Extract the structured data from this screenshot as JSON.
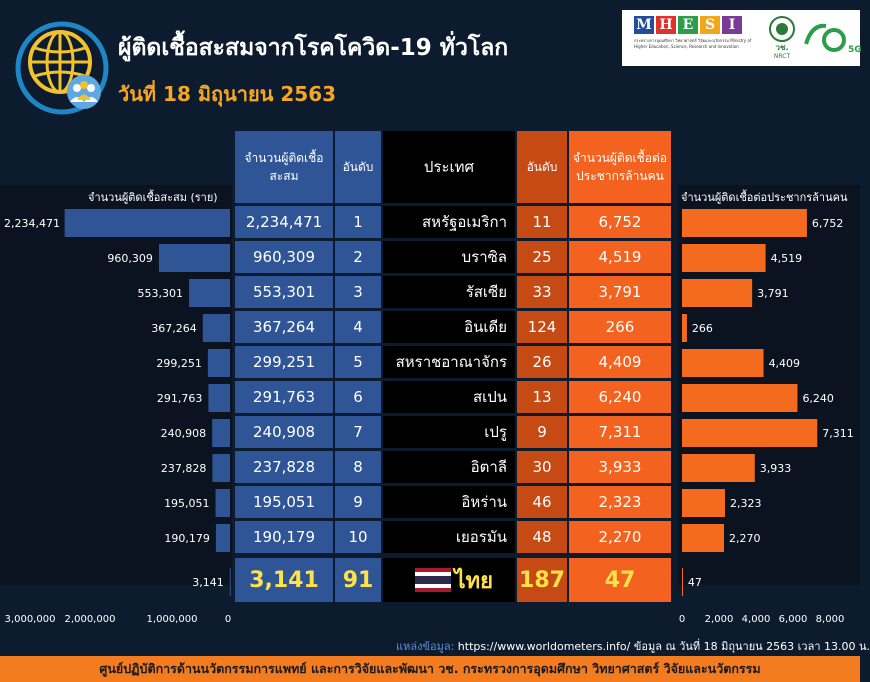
{
  "header": {
    "title": "ผู้ติดเชื้อสะสมจากโรคโควิด-19 ทั่วโลก",
    "date": "วันที่ 18 มิถุนายน 2563"
  },
  "logos": {
    "mhesi_letters": [
      "M",
      "H",
      "E",
      "S",
      "I"
    ],
    "mhesi_colors": [
      "#1f4e9c",
      "#e0312b",
      "#2b9e4a",
      "#f2a71b",
      "#7a3b97"
    ],
    "ministry_text": "กระทรวงการอุดมศึกษา วิทยาศาสตร์ วิจัยและนวัตกรรม Ministry of Higher Education, Science, Research and Innovation",
    "nrct_text": "วช. NRCT",
    "logo70_text": "70",
    "logo70_sub": "5G"
  },
  "table": {
    "headers": {
      "cases": "จำนวนผู้ติดเชื้อสะสม",
      "rank_cases": "อันดับ",
      "country": "ประเทศ",
      "rank_per_million": "อันดับ",
      "per_million": "จำนวนผู้ติดเชื้อต่อประชากรล้านคน"
    },
    "rows": [
      {
        "cases": "2,234,471",
        "rank": "1",
        "country": "สหรัฐอเมริกา",
        "rank_pm": "11",
        "per_million": "6,752"
      },
      {
        "cases": "960,309",
        "rank": "2",
        "country": "บราซิล",
        "rank_pm": "25",
        "per_million": "4,519"
      },
      {
        "cases": "553,301",
        "rank": "3",
        "country": "รัสเซีย",
        "rank_pm": "33",
        "per_million": "3,791"
      },
      {
        "cases": "367,264",
        "rank": "4",
        "country": "อินเดีย",
        "rank_pm": "124",
        "per_million": "266"
      },
      {
        "cases": "299,251",
        "rank": "5",
        "country": "สหราชอาณาจักร",
        "rank_pm": "26",
        "per_million": "4,409"
      },
      {
        "cases": "291,763",
        "rank": "6",
        "country": "สเปน",
        "rank_pm": "13",
        "per_million": "6,240"
      },
      {
        "cases": "240,908",
        "rank": "7",
        "country": "เปรู",
        "rank_pm": "9",
        "per_million": "7,311"
      },
      {
        "cases": "237,828",
        "rank": "8",
        "country": "อิตาลี",
        "rank_pm": "30",
        "per_million": "3,933"
      },
      {
        "cases": "195,051",
        "rank": "9",
        "country": "อิหร่าน",
        "rank_pm": "46",
        "per_million": "2,323"
      },
      {
        "cases": "190,179",
        "rank": "10",
        "country": "เยอรมัน",
        "rank_pm": "48",
        "per_million": "2,270"
      }
    ],
    "thailand": {
      "cases": "3,141",
      "rank": "91",
      "country": "ไทย",
      "rank_pm": "187",
      "per_million": "47"
    }
  },
  "chart_data": [
    {
      "type": "bar",
      "orientation": "horizontal",
      "direction": "leftward",
      "title": "จำนวนผู้ติดเชื้อสะสม (ราย)",
      "categories": [
        "สหรัฐอเมริกา",
        "บราซิล",
        "รัสเซีย",
        "อินเดีย",
        "สหราชอาณาจักร",
        "สเปน",
        "เปรู",
        "อิตาลี",
        "อิหร่าน",
        "เยอรมัน",
        "ไทย"
      ],
      "values": [
        2234471,
        960309,
        553301,
        367264,
        299251,
        291763,
        240908,
        237828,
        195051,
        190179,
        3141
      ],
      "labels": [
        "2,234,471",
        "960,309",
        "553,301",
        "367,264",
        "299,251",
        "291,763",
        "240,908",
        "237,828",
        "195,051",
        "190,179",
        "3,141"
      ],
      "xlim": [
        0,
        3000000
      ],
      "ticks": [
        "3,000,000",
        "2,000,000",
        "1,000,000",
        "0"
      ],
      "color": "#2f5597"
    },
    {
      "type": "bar",
      "orientation": "horizontal",
      "title": "จำนวนผู้ติดเชื้อต่อประชากรล้านคน",
      "categories": [
        "สหรัฐอเมริกา",
        "บราซิล",
        "รัสเซีย",
        "อินเดีย",
        "สหราชอาณาจักร",
        "สเปน",
        "เปรู",
        "อิตาลี",
        "อิหร่าน",
        "เยอรมัน",
        "ไทย"
      ],
      "values": [
        6752,
        4519,
        3791,
        266,
        4409,
        6240,
        7311,
        3933,
        2323,
        2270,
        47
      ],
      "labels": [
        "6,752",
        "4,519",
        "3,791",
        "266",
        "4,409",
        "6,240",
        "7,311",
        "3,933",
        "2,323",
        "2,270",
        "47"
      ],
      "xlim": [
        0,
        8000
      ],
      "ticks": [
        "0",
        "2,000",
        "4,000",
        "6,000",
        "8,000"
      ],
      "color": "#f46a1f"
    }
  ],
  "source": {
    "label": "แหล่งข้อมูล:",
    "text": " https://www.worldometers.info/ ข้อมูล ณ วันที่ 18 มิถุนายน 2563 เวลา 13.00 น."
  },
  "footer": "ศูนย์ปฏิบัติการด้านนวัตกรรมการแพทย์ และการวิจัยและพัฒนา วช.   กระทรวงการอุดมศึกษา วิทยาศาสตร์ วิจัยและนวัตกรรม"
}
